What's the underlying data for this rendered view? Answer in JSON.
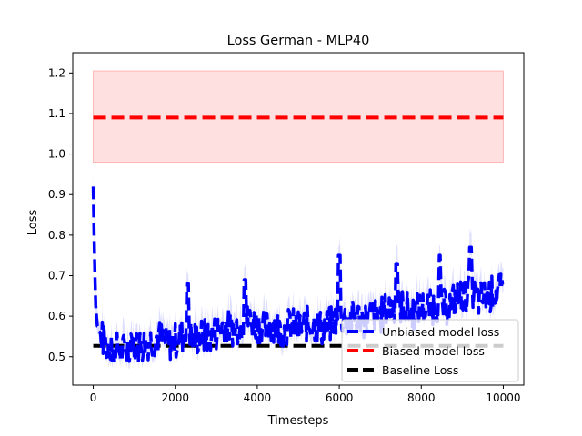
{
  "chart_data": {
    "type": "line",
    "title": "Loss German - MLP40",
    "xlabel": "Timesteps",
    "ylabel": "Loss",
    "xlim": [
      -500,
      10500
    ],
    "ylim": [
      0.43,
      1.25
    ],
    "xticks": [
      0,
      2000,
      4000,
      6000,
      8000,
      10000
    ],
    "yticks": [
      0.5,
      0.6,
      0.7,
      0.8,
      0.9,
      1.0,
      1.1,
      1.2
    ],
    "grid": false,
    "legend_placement": "lower-right",
    "series": [
      {
        "name": "Unbiased model loss",
        "color": "#0000ff",
        "style": "dashed",
        "x": [
          0,
          25,
          50,
          75,
          100,
          150,
          200,
          300,
          400,
          500,
          600,
          700,
          800,
          900,
          1000,
          1200,
          1400,
          1600,
          1800,
          2000,
          2200,
          2300,
          2400,
          2600,
          2800,
          3000,
          3200,
          3400,
          3600,
          3800,
          4000,
          4200,
          4400,
          4600,
          4800,
          5000,
          5200,
          5400,
          5600,
          5800,
          6000,
          6200,
          6400,
          6600,
          6800,
          7000,
          7200,
          7400,
          7600,
          7800,
          8000,
          8200,
          8400,
          8600,
          8800,
          9000,
          9200,
          9400,
          9600,
          9800,
          10000
        ],
        "y": [
          0.92,
          0.78,
          0.66,
          0.6,
          0.58,
          0.56,
          0.55,
          0.53,
          0.52,
          0.51,
          0.52,
          0.51,
          0.52,
          0.51,
          0.52,
          0.53,
          0.54,
          0.55,
          0.53,
          0.54,
          0.55,
          0.6,
          0.54,
          0.55,
          0.55,
          0.56,
          0.58,
          0.57,
          0.58,
          0.59,
          0.58,
          0.57,
          0.58,
          0.56,
          0.58,
          0.57,
          0.58,
          0.58,
          0.57,
          0.58,
          0.6,
          0.59,
          0.6,
          0.59,
          0.6,
          0.6,
          0.62,
          0.63,
          0.62,
          0.61,
          0.62,
          0.62,
          0.63,
          0.62,
          0.64,
          0.65,
          0.66,
          0.64,
          0.65,
          0.66,
          0.66
        ]
      },
      {
        "name": "Biased model loss",
        "color": "#ff0000",
        "style": "dashed",
        "x": [
          0,
          10000
        ],
        "y": [
          1.09,
          1.09
        ],
        "band": [
          0.98,
          1.205
        ]
      },
      {
        "name": "Baseline Loss",
        "color": "#000000",
        "style": "dashed",
        "x": [
          0,
          10000
        ],
        "y": [
          0.527,
          0.527
        ]
      }
    ],
    "spikes": [
      {
        "x": 2300,
        "y": 0.68
      },
      {
        "x": 3700,
        "y": 0.69
      },
      {
        "x": 6000,
        "y": 0.75
      },
      {
        "x": 7400,
        "y": 0.73
      },
      {
        "x": 8450,
        "y": 0.75
      },
      {
        "x": 9200,
        "y": 0.77
      }
    ]
  }
}
